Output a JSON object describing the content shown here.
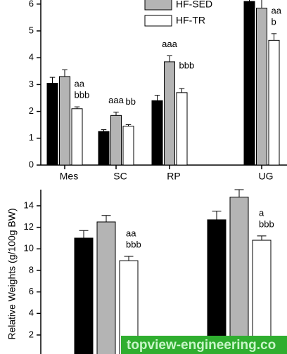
{
  "chart_data": [
    {
      "type": "bar",
      "categories": [
        "Mes",
        "SC",
        "RP",
        "UG"
      ],
      "ylim": [
        0,
        6.5
      ],
      "yticks": [
        0,
        1,
        2,
        3,
        4,
        5,
        6
      ],
      "series": [
        {
          "color": "#000000",
          "values": [
            3.05,
            1.25,
            2.4,
            6.1
          ],
          "errors": [
            0.22,
            0.07,
            0.2,
            0.35
          ]
        },
        {
          "name": "HF-SED",
          "color": "#b4b4b4",
          "values": [
            3.3,
            1.85,
            3.85,
            5.85
          ],
          "errors": [
            0.25,
            0.12,
            0.22,
            0.35
          ]
        },
        {
          "name": "HF-TR",
          "color": "#ffffff",
          "values": [
            2.1,
            1.45,
            2.7,
            4.65
          ],
          "errors": [
            0.07,
            0.06,
            0.15,
            0.25
          ],
          "annotations": [
            [
              "aa",
              "bbb"
            ],
            [
              "bb"
            ],
            [
              "bbb"
            ],
            [
              "aa",
              "b"
            ]
          ]
        }
      ],
      "series_annotations_gray": [
        null,
        [
          "aaa"
        ],
        [
          "aaa"
        ],
        null
      ]
    },
    {
      "type": "bar",
      "categories": [
        null,
        null
      ],
      "ylabel": "Relative Weights (g/100g BW)",
      "ylim": [
        0,
        15.5
      ],
      "yticks": [
        2,
        4,
        6,
        8,
        10,
        12,
        14
      ],
      "series": [
        {
          "color": "#000000",
          "values": [
            11.0,
            12.7
          ],
          "errors": [
            0.7,
            0.8
          ]
        },
        {
          "color": "#b4b4b4",
          "values": [
            12.5,
            14.8
          ],
          "errors": [
            0.6,
            0.7
          ]
        },
        {
          "color": "#ffffff",
          "values": [
            8.9,
            10.8
          ],
          "errors": [
            0.4,
            0.4
          ],
          "annotations": [
            [
              "aa",
              "bbb"
            ],
            [
              "a",
              "bbb"
            ]
          ]
        }
      ]
    }
  ],
  "watermark": "topview-engineering.co"
}
